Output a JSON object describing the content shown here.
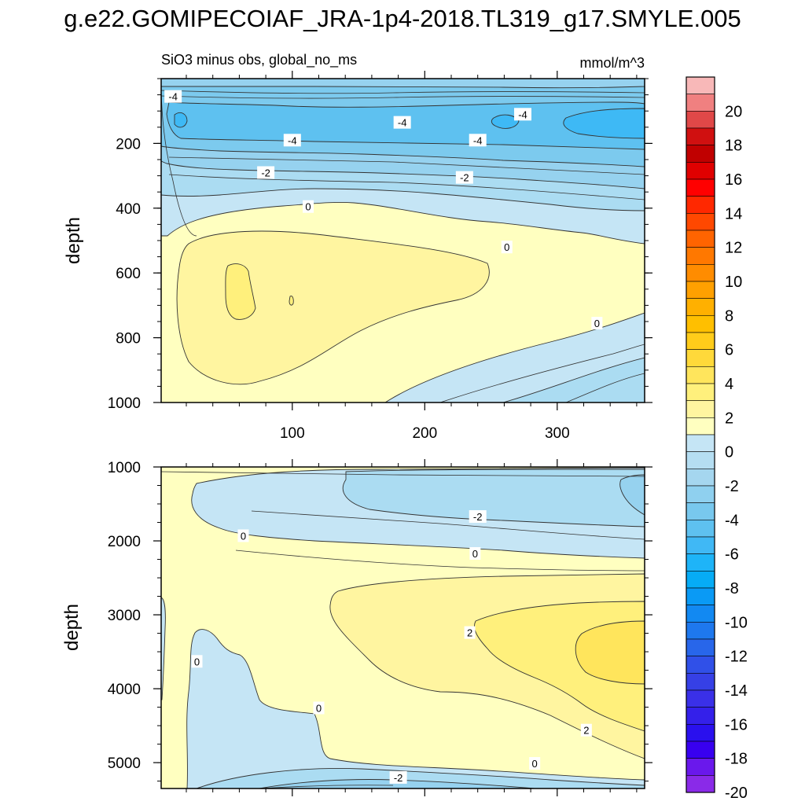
{
  "title": "g.e22.GOMIPECOIAF_JRA-1p4-2018.TL319_g17.SMYLE.005",
  "chart_data": {
    "type": "heatmap",
    "subtitle_left": "SiO3 minus obs, global_no_ms",
    "subtitle_right": "mmol/m^3",
    "xlabel": "",
    "ylabel": "depth",
    "x_range": [
      1,
      366
    ],
    "x_ticks": [
      100,
      200,
      300
    ],
    "panels": [
      {
        "name": "upper",
        "ylim": [
          0,
          1000
        ],
        "y_ticks": [
          200,
          400,
          600,
          800,
          1000
        ],
        "contour_labels": [
          {
            "x": 10,
            "depth": 55,
            "text": "-4"
          },
          {
            "x": 183,
            "depth": 135,
            "text": "-4"
          },
          {
            "x": 274,
            "depth": 110,
            "text": "-4"
          },
          {
            "x": 100,
            "depth": 190,
            "text": "-4"
          },
          {
            "x": 240,
            "depth": 190,
            "text": "-4"
          },
          {
            "x": 80,
            "depth": 290,
            "text": "-2"
          },
          {
            "x": 230,
            "depth": 305,
            "text": "-2"
          },
          {
            "x": 112,
            "depth": 395,
            "text": "0"
          },
          {
            "x": 262,
            "depth": 520,
            "text": "0"
          },
          {
            "x": 330,
            "depth": 755,
            "text": "0"
          }
        ]
      },
      {
        "name": "lower",
        "ylim": [
          1000,
          5350
        ],
        "y_ticks": [
          1000,
          2000,
          3000,
          4000,
          5000
        ],
        "contour_labels": [
          {
            "x": 240,
            "depth": 1670,
            "text": "-2"
          },
          {
            "x": 63,
            "depth": 1930,
            "text": "0"
          },
          {
            "x": 238,
            "depth": 2170,
            "text": "0"
          },
          {
            "x": 234,
            "depth": 3240,
            "text": "2"
          },
          {
            "x": 28,
            "depth": 3630,
            "text": "0"
          },
          {
            "x": 120,
            "depth": 4260,
            "text": "0"
          },
          {
            "x": 322,
            "depth": 4560,
            "text": "2"
          },
          {
            "x": 283,
            "depth": 5010,
            "text": "0"
          },
          {
            "x": 180,
            "depth": 5200,
            "text": "-2"
          }
        ]
      }
    ],
    "colorbar": {
      "labels": [
        "20",
        "18",
        "16",
        "14",
        "12",
        "10",
        "8",
        "6",
        "4",
        "2",
        "0",
        "-2",
        "-4",
        "-6",
        "-8",
        "-10",
        "-12",
        "-14",
        "-16",
        "-18",
        "-20"
      ],
      "colors_top_to_bottom": [
        "#f8b8b8",
        "#f08080",
        "#e04848",
        "#d01010",
        "#c00000",
        "#e00000",
        "#ff0000",
        "#ff2800",
        "#ff4800",
        "#ff6400",
        "#ff7800",
        "#ff8c00",
        "#ffa000",
        "#ffb000",
        "#ffbf00",
        "#ffcc1a",
        "#ffd93a",
        "#ffe55c",
        "#fff07c",
        "#fff5a0",
        "#ffffc0",
        "#c5e5f5",
        "#b5def2",
        "#a5d6ef",
        "#8fd0ef",
        "#78c8ee",
        "#5ec1f0",
        "#40b8f5",
        "#1eb4f8",
        "#06acf6",
        "#0a9af5",
        "#1289f2",
        "#1e78ee",
        "#2866ea",
        "#3050e8",
        "#3640e6",
        "#3a30e8",
        "#3420ea",
        "#2a10ee",
        "#3800f0",
        "#6a18ec",
        "#8a2ae8"
      ]
    },
    "colors": {
      "neg1": "#c5e5f5",
      "neg2": "#abdcf2",
      "neg3": "#96d2ef",
      "neg4": "#7ccaee",
      "neg5": "#5ec1f0",
      "neg6": "#3eb9f5",
      "pos1": "#ffffc0",
      "pos2": "#fff5a0",
      "pos3": "#fff07c",
      "pos4": "#ffe55c"
    }
  }
}
